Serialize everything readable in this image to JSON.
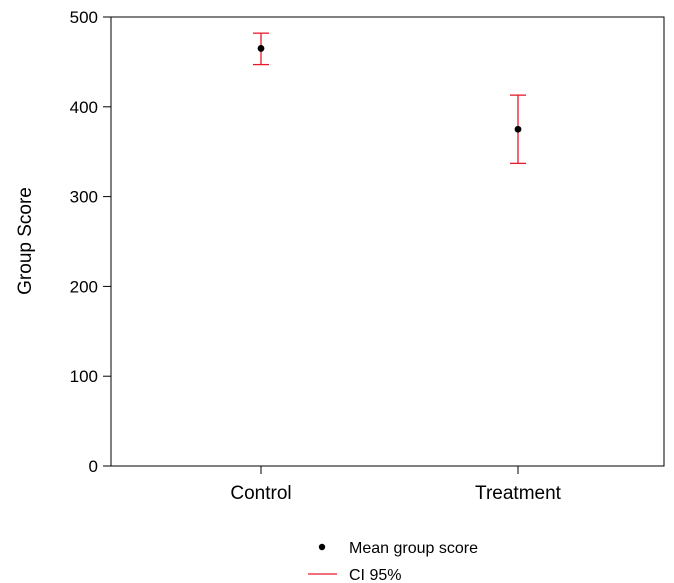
{
  "chart_data": {
    "type": "scatter",
    "title": "",
    "xlabel": "",
    "ylabel": "Group Score",
    "categories": [
      "Control",
      "Treatment"
    ],
    "ylim": [
      0,
      500
    ],
    "yticks": [
      "0",
      "100",
      "200",
      "300",
      "400",
      "500"
    ],
    "grid": false,
    "legend_position": "bottom-center",
    "series": [
      {
        "name": "Mean group score",
        "marker": "point",
        "color": "#000000",
        "values": [
          465,
          375
        ]
      },
      {
        "name": "CI 95%",
        "marker": "error-bar",
        "color": "#e8192c",
        "lower": [
          447,
          337
        ],
        "upper": [
          482,
          413
        ]
      }
    ]
  }
}
